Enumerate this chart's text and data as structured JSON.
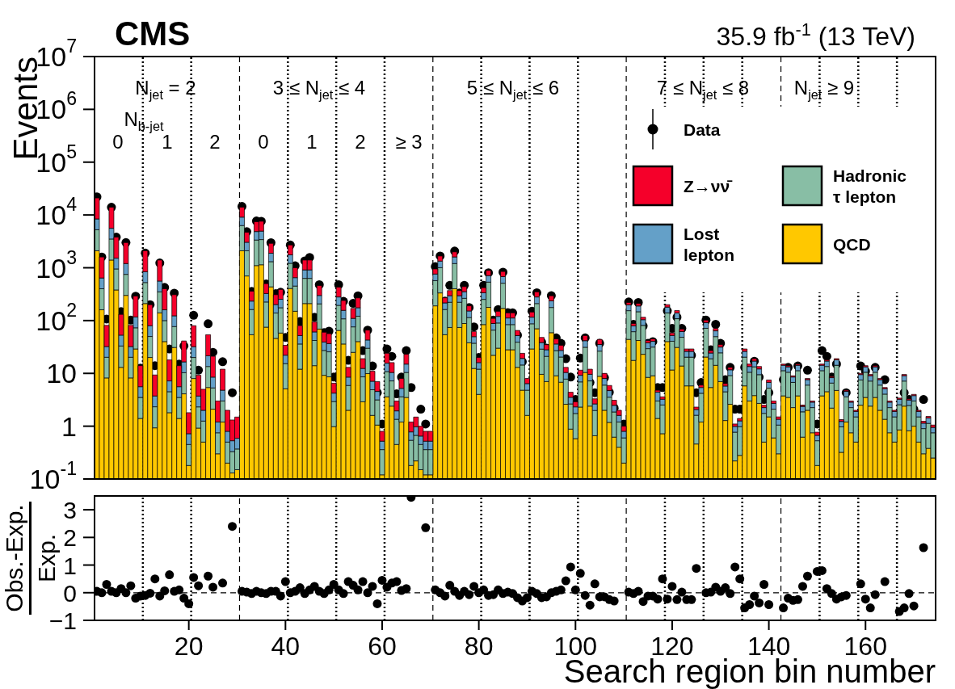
{
  "chart_data": [
    {
      "type": "bar",
      "title": "CMS",
      "subtitle": "35.9 fb$^{-1}$ (13 TeV)",
      "ylabel": "Events",
      "stacked": true,
      "log": true,
      "legend": "top right",
      "tick_labels": "y",
      "marker": "circle",
      "x": [
        1,
        2,
        3,
        4,
        5,
        6,
        7,
        8,
        9,
        10,
        11,
        12,
        13,
        14,
        15,
        16,
        17,
        18,
        19,
        20,
        21,
        22,
        23,
        24,
        25,
        26,
        27,
        28,
        29,
        30,
        31,
        32,
        33,
        34,
        35,
        36,
        37,
        38,
        39,
        40,
        41,
        42,
        43,
        44,
        45,
        46,
        47,
        48,
        49,
        50,
        51,
        52,
        53,
        54,
        55,
        56,
        57,
        58,
        59,
        60,
        61,
        62,
        63,
        64,
        65,
        66,
        67,
        68,
        69,
        70,
        71,
        72,
        73,
        74,
        75,
        76,
        77,
        78,
        79,
        80,
        81,
        82,
        83,
        84,
        85,
        86,
        87,
        88,
        89,
        90,
        91,
        92,
        93,
        94,
        95,
        96,
        97,
        98,
        99,
        100,
        101,
        102,
        103,
        104,
        105,
        106,
        107,
        108,
        109,
        110,
        111,
        112,
        113,
        114,
        115,
        116,
        117,
        118,
        119,
        120,
        121,
        122,
        123,
        124,
        125,
        126,
        127,
        128,
        129,
        130,
        131,
        132,
        133,
        134,
        135,
        136,
        137,
        138,
        139,
        140,
        141,
        142,
        143,
        144,
        145,
        146,
        147,
        148,
        149,
        150,
        151,
        152,
        153,
        154,
        155,
        156,
        157,
        158,
        159,
        160,
        161,
        162,
        163,
        164,
        165,
        166,
        167,
        168,
        169,
        170,
        171,
        172,
        173,
        174
      ],
      "xlim": [
        0.5,
        174.5
      ],
      "xticks": [
        20,
        40,
        60,
        80,
        100,
        120,
        140,
        160
      ],
      "ylim": [
        0.1,
        10000000
      ],
      "yticks": [
        {
          "value": 0.1,
          "label": "10$^{-1}$"
        },
        1,
        10,
        {
          "value": 100,
          "label": "10$^{2}$"
        },
        {
          "value": 1000,
          "label": "10$^{3}$"
        },
        {
          "value": 10000,
          "label": "10$^{4}$"
        },
        {
          "value": 100000,
          "label": "10$^{5}$"
        },
        {
          "value": 1000000,
          "label": "10$^{6}$"
        },
        {
          "value": 10000000,
          "label": "10$^{7}$"
        }
      ],
      "series": [
        {
          "name": "QCD",
          "color": "#ffc800",
          "values": [
            2100,
            160,
            8.2,
            1400,
            380,
            13,
            300,
            8.2,
            29,
            1.4,
            210,
            20,
            0.93,
            140,
            40,
            1.8,
            31,
            1.4,
            4.1,
            0.18,
            8,
            0.92,
            0.5,
            5.4,
            2.1,
            0.3,
            1.2,
            0.2,
            0.13,
            0.15,
            2100,
            700,
            54,
            1100,
            1140,
            75,
            435,
            46,
            58,
            5.1,
            405,
            150,
            12,
            210,
            210,
            14,
            69,
            9.2,
            8.6,
            0.98,
            65,
            36,
            2,
            25,
            40,
            2.9,
            9.9,
            1.6,
            1.05,
            0.12,
            3.6,
            2.4,
            0.45,
            1.2,
            3.5,
            0.18,
            0.22,
            0.15,
            0.12,
            0.12,
            190,
            334,
            54,
            74,
            400,
            74,
            88,
            38,
            12.4,
            4,
            84,
            178,
            22,
            30,
            170,
            28,
            28,
            13,
            4.8,
            1.6,
            29,
            70,
            9.6,
            7,
            59,
            9,
            6.8,
            2.6,
            0.88,
            0.58,
            2.3,
            10.4,
            2.4,
            0.66,
            8.8,
            2,
            1.18,
            0.62,
            0.4,
            0.2,
            44,
            17.6,
            42,
            23,
            8.4,
            9,
            1.4,
            0.72,
            40,
            11.6,
            31,
            13.8,
            5.8,
            5.8,
            0.46,
            1.2,
            20.4,
            5.4,
            14.2,
            7,
            1.28,
            2.6,
            0.22,
            0.28,
            5.8,
            3,
            3.8,
            2.7,
            0.5,
            1.5,
            0.6,
            0.3,
            3.75,
            3.5,
            2.25,
            3.75,
            0.62,
            2,
            0.75,
            0.18,
            3.75,
            4.5,
            2.2,
            4.75,
            0.32,
            1.2,
            0.75,
            0.5,
            2.5,
            3.5,
            2.4,
            3.5,
            2,
            1.35,
            0.75,
            0.5,
            0.85,
            2.4,
            0.82,
            1,
            0.5,
            0.3,
            0.38,
            0.25
          ]
        },
        {
          "name": "Hadronic τ lepton",
          "color": "#88bea5",
          "values": [
            3150,
            240,
            12,
            2100,
            570,
            20,
            450,
            12,
            44,
            2.1,
            315,
            30,
            1.4,
            210,
            60,
            2.7,
            46,
            2.1,
            6.2,
            0.27,
            12,
            1.4,
            0.75,
            8.1,
            3.2,
            0.45,
            1.8,
            0.3,
            0.2,
            0.22,
            4200,
            1400,
            108,
            2250,
            2280,
            150,
            870,
            93,
            117,
            10.2,
            810,
            300,
            24,
            420,
            420,
            28,
            138,
            18,
            17,
            1.95,
            129,
            72,
            3.9,
            51,
            81,
            5.7,
            20,
            3.3,
            2.1,
            0.24,
            7.2,
            4.8,
            0.9,
            2.4,
            6.9,
            0.36,
            0.45,
            0.3,
            0.24,
            0.24,
            380,
            668,
            108,
            148,
            800,
            148,
            176,
            76,
            24.8,
            8,
            168,
            356,
            44,
            60,
            340,
            56,
            56,
            26,
            9.6,
            3.2,
            58,
            140,
            19.2,
            14,
            118,
            18,
            13.6,
            5.2,
            1.76,
            1.16,
            4.6,
            20.8,
            4.8,
            1.32,
            17.6,
            4,
            2.36,
            1.24,
            0.8,
            0.4,
            110,
            44,
            105,
            58,
            21,
            22.5,
            1.6,
            1.8,
            100,
            29,
            77.5,
            34.5,
            14.5,
            14.5,
            1.15,
            3,
            51,
            13.5,
            35.5,
            17.5,
            3.2,
            6.5,
            0.55,
            0.7,
            14.5,
            7.5,
            9.5,
            6.75,
            1.25,
            3.75,
            1.5,
            0.75,
            7.5,
            7,
            4.5,
            7.5,
            1.25,
            4,
            1.5,
            0.35,
            7.5,
            9,
            4.35,
            9.5,
            0.65,
            2.4,
            1.5,
            1,
            5,
            7,
            4.75,
            7,
            4,
            2.7,
            1.5,
            1,
            1.7,
            4.75,
            1.65,
            2,
            1,
            0.6,
            0.75,
            0.5
          ]
        },
        {
          "name": "Lost lepton",
          "color": "#64a0c8",
          "values": [
            3150,
            240,
            12,
            2100,
            570,
            20,
            450,
            12,
            44,
            2.1,
            315,
            30,
            1.4,
            210,
            60,
            2.7,
            46,
            2.1,
            6.2,
            0.27,
            12,
            1.4,
            0.75,
            8.1,
            3.2,
            0.45,
            1.8,
            0.3,
            0.2,
            0.22,
            2800,
            940,
            72,
            1500,
            1520,
            100,
            580,
            62,
            78,
            6.8,
            540,
            200,
            16,
            280,
            280,
            19,
            92,
            12,
            11,
            1.3,
            86,
            48,
            2.6,
            34,
            54,
            3.8,
            13,
            2.2,
            1.4,
            0.16,
            4.8,
            3.2,
            0.6,
            1.6,
            4.6,
            0.24,
            0.3,
            0.2,
            0.16,
            0.16,
            190,
            334,
            54,
            74,
            400,
            74,
            88,
            38,
            12.4,
            4,
            84,
            178,
            22,
            30,
            170,
            28,
            28,
            13,
            4.8,
            1.6,
            29,
            70,
            9.6,
            7,
            59,
            9,
            6.8,
            2.6,
            0.88,
            0.58,
            2.3,
            10.4,
            2.4,
            0.66,
            8.8,
            2,
            1.18,
            0.62,
            0.4,
            0.2,
            44,
            17.6,
            42,
            23,
            8.4,
            9,
            1.4,
            0.72,
            40,
            11.6,
            31,
            13.8,
            5.8,
            5.8,
            0.46,
            1.2,
            20.4,
            5.4,
            14.2,
            7,
            1.28,
            2.6,
            0.22,
            0.28,
            5.8,
            3,
            3.8,
            2.7,
            0.5,
            1.5,
            0.6,
            0.3,
            3,
            2.8,
            1.8,
            3,
            0.5,
            1.6,
            0.6,
            0.14,
            3,
            3.6,
            1.74,
            3.8,
            0.26,
            0.96,
            0.6,
            0.4,
            2,
            2.8,
            1.9,
            2.8,
            1.6,
            1.08,
            0.6,
            0.4,
            0.68,
            1.9,
            0.66,
            0.8,
            0.4,
            0.24,
            0.3,
            0.2
          ]
        },
        {
          "name": "Z→νν̄",
          "color": "#f5002a",
          "values": [
            12600,
            960,
            49,
            8400,
            2280,
            78,
            1800,
            49,
            174,
            8.4,
            1260,
            120,
            5.6,
            840,
            240,
            10.8,
            186,
            8.4,
            24.6,
            1.08,
            48,
            5.5,
            3,
            32.4,
            12.6,
            1.8,
            7.2,
            1.2,
            0.78,
            0.9,
            4900,
            1650,
            126,
            2600,
            2660,
            175,
            1015,
            108,
            136,
            11.9,
            945,
            350,
            28,
            490,
            490,
            33,
            161,
            21,
            20,
            2.28,
            150,
            84,
            4.5,
            60,
            94,
            6.6,
            23,
            3.9,
            2.45,
            0.28,
            8.4,
            5.6,
            1.05,
            2.8,
            8,
            0.42,
            0.52,
            0.35,
            0.28,
            0.28,
            190,
            334,
            54,
            74,
            400,
            74,
            88,
            38,
            12.4,
            4,
            84,
            178,
            22,
            30,
            170,
            28,
            28,
            13,
            4.8,
            1.6,
            29,
            70,
            9.6,
            7,
            59,
            9,
            6.8,
            2.6,
            0.88,
            0.58,
            2.3,
            10.4,
            2.4,
            0.66,
            8.8,
            2,
            1.18,
            0.62,
            0.4,
            0.2,
            22,
            8.8,
            21,
            11.6,
            4.2,
            4.5,
            0.4,
            0.36,
            20,
            5.8,
            15.5,
            6.9,
            2.9,
            2.9,
            0.23,
            0.6,
            10.2,
            2.7,
            7.1,
            3.5,
            0.64,
            1.3,
            0.11,
            0.14,
            2.9,
            1.5,
            1.9,
            1.35,
            0.25,
            0.75,
            0.3,
            0.15,
            0.75,
            0.7,
            0.45,
            0.75,
            0.12,
            0.4,
            0.15,
            0.1,
            0.75,
            0.9,
            0.44,
            0.95,
            0.1,
            0.24,
            0.15,
            0.1,
            0.5,
            0.7,
            0.48,
            0.7,
            0.4,
            0.27,
            0.15,
            0.1,
            0.17,
            0.48,
            0.16,
            0.2,
            0.1,
            0.1,
            0.1,
            0.1
          ]
        },
        {
          "name": "Data",
          "type": "scatter",
          "color": "#000000",
          "values": [
            22000,
            1600,
            107,
            14000,
            3800,
            148,
            3000,
            102,
            290,
            12.6,
            1900,
            200,
            14,
            1230,
            425,
            29,
            330,
            15,
            33,
            1.1,
            126,
            11.5,
            null,
            87,
            25,
            2.2,
            16.6,
            null,
            4.3,
            null,
            14500,
            4830,
            357,
            7700,
            7600,
            496,
            2980,
            324,
            344,
            48,
            2700,
            1090,
            96,
            1350,
            1570,
            116,
            478,
            59,
            63,
            8.5,
            478,
            231,
            17.7,
            212,
            294,
            27,
            66,
            13.8,
            4.3,
            1.1,
            29,
            21,
            4.1,
            8.5,
            27,
            5.4,
            null,
            2.1,
            1.1,
            null,
            1050,
            1670,
            234,
            465,
            2070,
            332,
            465,
            177,
            76,
            20,
            465,
            804,
            102,
            162,
            824,
            142,
            140,
            53,
            16.6,
            6.6,
            151,
            337,
            39,
            30,
            296,
            47,
            37,
            19,
            8.5,
            3.2,
            19.5,
            47,
            6.7,
            4.3,
            37,
            8.3,
            4.4,
            2.2,
            null,
            1.1,
            225,
            85,
            220,
            79,
            37,
            40,
            5.4,
            5.4,
            153,
            71,
            116,
            71,
            22,
            22,
            4.3,
            6.7,
            102,
            28,
            85,
            37,
            7.6,
            13,
            2.1,
            2.1,
            13,
            8.5,
            17,
            8.5,
            3.2,
            4.3,
            null,
            null,
            7.6,
            13,
            6.7,
            13.8,
            2.1,
            11.5,
            null,
            1.1,
            27,
            21,
            8.5,
            15,
            1.1,
            4.3,
            null,
            null,
            13.8,
            11,
            4.3,
            13,
            null,
            7.6,
            null,
            null,
            1.1,
            4.3,
            3.2,
            2.1,
            null,
            3.2,
            null,
            null
          ]
        }
      ],
      "ref_lines": [
        {
          "axis": "x",
          "value": 30.5,
          "line_style": "dashed"
        },
        {
          "axis": "x",
          "value": 70.5,
          "line_style": "dashed"
        },
        {
          "axis": "x",
          "value": 110.5,
          "line_style": "dashed"
        },
        {
          "axis": "x",
          "value": 142.5,
          "line_style": "dashed"
        },
        {
          "axis": "x",
          "value": 10.5,
          "line_style": "dotted"
        },
        {
          "axis": "x",
          "value": 20.5,
          "line_style": "dotted"
        },
        {
          "axis": "x",
          "value": 40.5,
          "line_style": "dotted"
        },
        {
          "axis": "x",
          "value": 50.5,
          "line_style": "dotted"
        },
        {
          "axis": "x",
          "value": 60.5,
          "line_style": "dotted"
        },
        {
          "axis": "x",
          "value": 80.5,
          "line_style": "dotted"
        },
        {
          "axis": "x",
          "value": 90.5,
          "line_style": "dotted"
        },
        {
          "axis": "x",
          "value": 100.5,
          "line_style": "dotted"
        },
        {
          "axis": "x",
          "value": 118.5,
          "line_style": "dotted"
        },
        {
          "axis": "x",
          "value": 126.5,
          "line_style": "dotted"
        },
        {
          "axis": "x",
          "value": 134.5,
          "line_style": "dotted"
        },
        {
          "axis": "x",
          "value": 150.5,
          "line_style": "dotted"
        },
        {
          "axis": "x",
          "value": 158.5,
          "line_style": "dotted"
        },
        {
          "axis": "x",
          "value": 166.5,
          "line_style": "dotted"
        }
      ],
      "annotations": [
        "N$_{jet}$ = 2",
        "3 ≤ N$_{jet}$ ≤ 4",
        "5 ≤ N$_{jet}$ ≤ 6",
        "7 ≤ N$_{jet}$ ≤ 8",
        "N$_{jet}$ ≥ 9",
        "N$_{b-jet}$",
        "0",
        "1",
        "2",
        "0",
        "1",
        "2",
        "≥ 3"
      ]
    },
    {
      "type": "scatter",
      "xlabel": "Search region bin number",
      "ylabel": "Obs.-Exp.\nExp.",
      "marker": "circle",
      "color": "#000000",
      "x": [
        1,
        2,
        3,
        4,
        5,
        6,
        7,
        8,
        9,
        10,
        11,
        12,
        13,
        14,
        15,
        16,
        17,
        18,
        19,
        20,
        21,
        22,
        23,
        24,
        25,
        26,
        27,
        28,
        29,
        30,
        31,
        32,
        33,
        34,
        35,
        36,
        37,
        38,
        39,
        40,
        41,
        42,
        43,
        44,
        45,
        46,
        47,
        48,
        49,
        50,
        51,
        52,
        53,
        54,
        55,
        56,
        57,
        58,
        59,
        60,
        61,
        62,
        63,
        64,
        65,
        66,
        67,
        68,
        69,
        70,
        71,
        72,
        73,
        74,
        75,
        76,
        77,
        78,
        79,
        80,
        81,
        82,
        83,
        84,
        85,
        86,
        87,
        88,
        89,
        90,
        91,
        92,
        93,
        94,
        95,
        96,
        97,
        98,
        99,
        100,
        101,
        102,
        103,
        104,
        105,
        106,
        107,
        108,
        109,
        110,
        111,
        112,
        113,
        114,
        115,
        116,
        117,
        118,
        119,
        120,
        121,
        122,
        123,
        124,
        125,
        126,
        127,
        128,
        129,
        130,
        131,
        132,
        133,
        134,
        135,
        136,
        137,
        138,
        139,
        140,
        141,
        142,
        143,
        144,
        145,
        146,
        147,
        148,
        149,
        150,
        151,
        152,
        153,
        154,
        155,
        156,
        157,
        158,
        159,
        160,
        161,
        162,
        163,
        164,
        165,
        166,
        167,
        168,
        169,
        170,
        171,
        172
      ],
      "values": [
        0.05,
        0,
        0.3,
        0.05,
        0,
        0.15,
        0,
        0.25,
        -0.2,
        -0.12,
        -0.1,
        -0.02,
        0.5,
        -0.12,
        0.07,
        0.65,
        0.05,
        0.1,
        -0.2,
        -0.4,
        0.55,
        0.25,
        null,
        0.6,
        0.2,
        null,
        0.35,
        null,
        2.4,
        null,
        0.05,
        0.02,
        -0.03,
        0.05,
        0,
        -0.03,
        0.05,
        0.05,
        -0.12,
        0.4,
        0,
        0.05,
        0.18,
        -0.03,
        0.1,
        0.23,
        0.05,
        -0.03,
        0.1,
        0.3,
        0.1,
        -0.03,
        0.4,
        0.27,
        0.1,
        0.4,
        0,
        0.23,
        -0.4,
        0.45,
        0.2,
        0.35,
        0.4,
        0.08,
        0.15,
        3.45,
        null,
        null,
        2.35,
        null,
        0.1,
        0,
        -0.12,
        0.27,
        0.05,
        -0.1,
        0.05,
        -0.07,
        0.23,
        0,
        0.1,
        -0.1,
        -0.07,
        0.1,
        -0.03,
        0.02,
        -0.03,
        -0.18,
        -0.3,
        -0.18,
        0.05,
        -0.03,
        -0.18,
        -0.15,
        0,
        0.05,
        0.1,
        0.43,
        0.93,
        0.1,
        0.7,
        -0.1,
        -0.45,
        0.32,
        -0.15,
        -0.15,
        -0.25,
        -0.3,
        null,
        null,
        0.02,
        -0.03,
        0.05,
        -0.32,
        -0.12,
        -0.12,
        -0.23,
        0.5,
        -0.23,
        0.23,
        -0.25,
        0.02,
        -0.25,
        -0.25,
        0.88,
        null,
        0,
        0.02,
        0.2,
        0.05,
        0.18,
        -0.03,
        0.93,
        0.5,
        -0.55,
        -0.43,
        -0.12,
        -0.37,
        0.3,
        -0.43,
        null,
        null,
        -0.55,
        -0.2,
        -0.28,
        -0.25,
        0.23,
        0.6,
        null,
        0.77,
        0.8,
        0.15,
        -0.03,
        -0.23,
        -0.15,
        -0.1,
        null,
        null,
        0.32,
        -0.23,
        -0.55,
        -0.07,
        null,
        0.4,
        null,
        null,
        -0.68,
        -0.55,
        -0.03,
        -0.48,
        null,
        1.63
      ],
      "xlim": [
        0.5,
        174.5
      ],
      "xticks": [
        20,
        40,
        60,
        80,
        100,
        120,
        140,
        160
      ],
      "ylim": [
        -1,
        3.5
      ],
      "yticks": [
        {
          "value": -1,
          "label": "−1"
        },
        0,
        1,
        2,
        3
      ],
      "ref_lines": [
        {
          "axis": "y",
          "value": 0,
          "line_style": "dashed"
        },
        {
          "axis": "x",
          "value": 30.5,
          "line_style": "dashed"
        },
        {
          "axis": "x",
          "value": 70.5,
          "line_style": "dashed"
        },
        {
          "axis": "x",
          "value": 110.5,
          "line_style": "dashed"
        },
        {
          "axis": "x",
          "value": 142.5,
          "line_style": "dashed"
        },
        {
          "axis": "x",
          "value": 10.5,
          "line_style": "dotted"
        },
        {
          "axis": "x",
          "value": 20.5,
          "line_style": "dotted"
        },
        {
          "axis": "x",
          "value": 40.5,
          "line_style": "dotted"
        },
        {
          "axis": "x",
          "value": 50.5,
          "line_style": "dotted"
        },
        {
          "axis": "x",
          "value": 60.5,
          "line_style": "dotted"
        },
        {
          "axis": "x",
          "value": 80.5,
          "line_style": "dotted"
        },
        {
          "axis": "x",
          "value": 90.5,
          "line_style": "dotted"
        },
        {
          "axis": "x",
          "value": 100.5,
          "line_style": "dotted"
        },
        {
          "axis": "x",
          "value": 118.5,
          "line_style": "dotted"
        },
        {
          "axis": "x",
          "value": 126.5,
          "line_style": "dotted"
        },
        {
          "axis": "x",
          "value": 134.5,
          "line_style": "dotted"
        },
        {
          "axis": "x",
          "value": 150.5,
          "line_style": "dotted"
        },
        {
          "axis": "x",
          "value": 158.5,
          "line_style": "dotted"
        },
        {
          "axis": "x",
          "value": 166.5,
          "line_style": "dotted"
        }
      ]
    }
  ]
}
